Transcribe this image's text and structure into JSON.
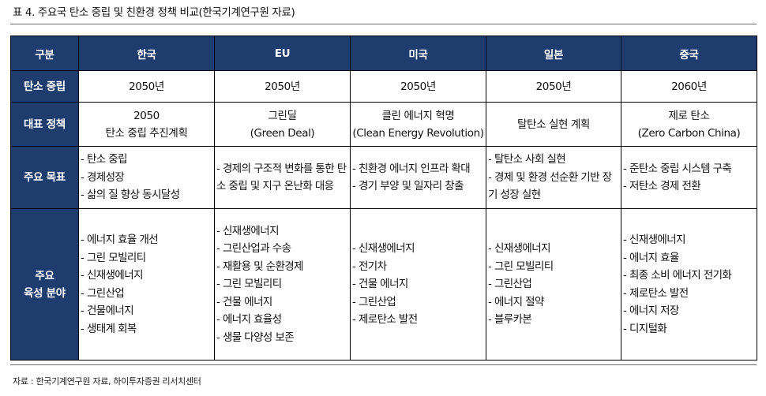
{
  "caption": "표 4. 주요국 탄소 중립 및 친환경 정책 비교(한국기계연구원 자료)",
  "source": "자료 : 한국기계연구원 자료, 하이투자증권 리서치센터",
  "header": {
    "corner": "구분",
    "countries": [
      "한국",
      "EU",
      "미국",
      "일본",
      "중국"
    ]
  },
  "rows": [
    {
      "label": [
        "탄소 중립"
      ],
      "cells": [
        [
          "2050년"
        ],
        [
          "2050년"
        ],
        [
          "2050년"
        ],
        [
          "2050년"
        ],
        [
          "2060년"
        ]
      ]
    },
    {
      "label": [
        "대표 정책"
      ],
      "cells": [
        [
          "2050",
          "탄소 중립 추진계획"
        ],
        [
          "그린딜",
          "(Green Deal)"
        ],
        [
          "클린 에너지 혁명",
          "(Clean Energy Revolution)"
        ],
        [
          "탈탄소 실현 계획"
        ],
        [
          "제로 탄소",
          "(Zero Carbon China)"
        ]
      ]
    },
    {
      "label": [
        "주요 목표"
      ],
      "cells": [
        [
          "- 탄소 중립",
          "- 경제성장",
          "- 삶의 질 향상 동시달성"
        ],
        [
          "- 경제의 구조적 변화를 통한 탄소 중립 및 지구 온난화 대응"
        ],
        [
          "- 친환경 에너지 인프라 확대",
          "- 경기 부양 및 일자리 창출"
        ],
        [
          "- 탈탄소 사회 실현",
          "- 경제 및 환경 선순환 기반 장기 성장 실현"
        ],
        [
          "- 준탄소 중립 시스템 구축",
          "- 저탄소 경제 전환"
        ]
      ]
    },
    {
      "label": [
        "주요",
        "육성 분야"
      ],
      "cells": [
        [
          "- 에너지 효율 개선",
          "- 그린 모빌리티",
          "- 신재생에너지",
          "- 그린산업",
          "- 건물에너지",
          "- 생태계 회복"
        ],
        [
          "- 신재생에너지",
          "- 그린산업과 수송",
          "- 재활용 및 순환경제",
          "- 그린 모빌리티",
          "- 건물 에너지",
          "- 에너지 효율성",
          "- 생물 다양성 보존"
        ],
        [
          "- 신재생에너지",
          "- 전기차",
          "- 건물 에너지",
          "- 그린산업",
          "- 제로탄소 발전"
        ],
        [
          "- 신재생에너지",
          "- 그린 모빌리티",
          "- 그린산업",
          "- 에너지 절약",
          "- 블루카본"
        ],
        [
          "- 신재생에너지",
          "- 에너지 효율",
          "- 최종 소비 에너지 전기화",
          "- 제로탄소 발전",
          "- 에너지 저장",
          "- 디지털화"
        ]
      ]
    }
  ]
}
